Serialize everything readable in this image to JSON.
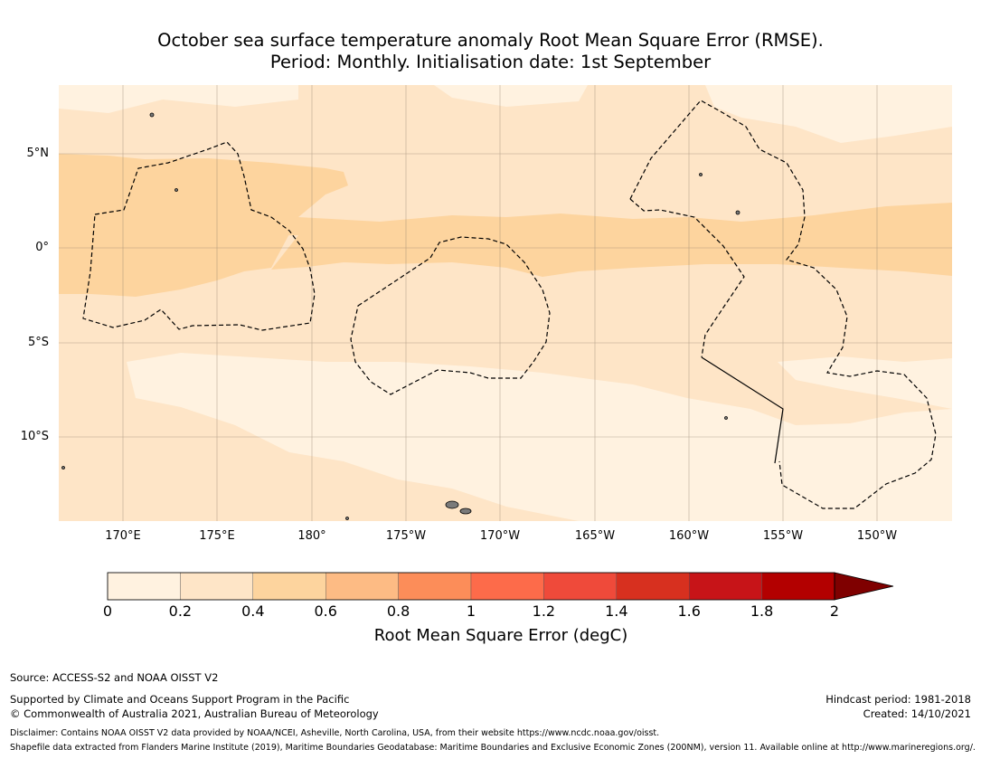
{
  "title": {
    "line1": "October sea surface temperature anomaly Root Mean Square Error (RMSE).",
    "line2": "Period: Monthly. Initialisation date: 1st September"
  },
  "map": {
    "lat_labels": [
      "5°N",
      "0°",
      "5°S",
      "10°S"
    ],
    "lon_labels": [
      "170°E",
      "175°E",
      "180°",
      "175°W",
      "170°W",
      "165°W",
      "160°W",
      "155°W",
      "150°W"
    ],
    "gridlines": true,
    "eez_boundary_style": "dashed",
    "colors": {
      "band_0_02": "#fff2e0",
      "band_02_04": "#fee5c7",
      "band_04_06": "#fdd49e",
      "band_06_08": "#fdbb84",
      "land": "#808080"
    }
  },
  "colorbar": {
    "label": "Root Mean Square Error (degC)",
    "ticks": [
      "0",
      "0.2",
      "0.4",
      "0.6",
      "0.8",
      "1",
      "1.2",
      "1.4",
      "1.6",
      "1.8",
      "2"
    ],
    "colors": [
      "#fff2e0",
      "#fee5c7",
      "#fdd49e",
      "#fdbb84",
      "#fc8d59",
      "#fd6b4a",
      "#ef4a3a",
      "#d7301f",
      "#c71418",
      "#b30000",
      "#7f0000"
    ],
    "extend": "max"
  },
  "footer": {
    "source": "Source: ACCESS-S2 and NOAA OISST V2",
    "supported": "Supported by Climate and Oceans Support Program in the Pacific",
    "copyright": "© Commonwealth of Australia 2021, Australian Bureau of Meteorology",
    "hindcast": "Hindcast period: 1981-2018",
    "created": "Created: 14/10/2021",
    "disclaimer": "Disclaimer: Contains NOAA OISST V2 data provided by NOAA/NCEI, Asheville, North Carolina, USA, from their website https://www.ncdc.noaa.gov/oisst.",
    "shapefile": "Shapefile data extracted from Flanders Marine Institute (2019), Maritime Boundaries Geodatabase: Maritime Boundaries and Exclusive Economic Zones (200NM), version 11. Available online at http://www.marineregions.org/."
  }
}
